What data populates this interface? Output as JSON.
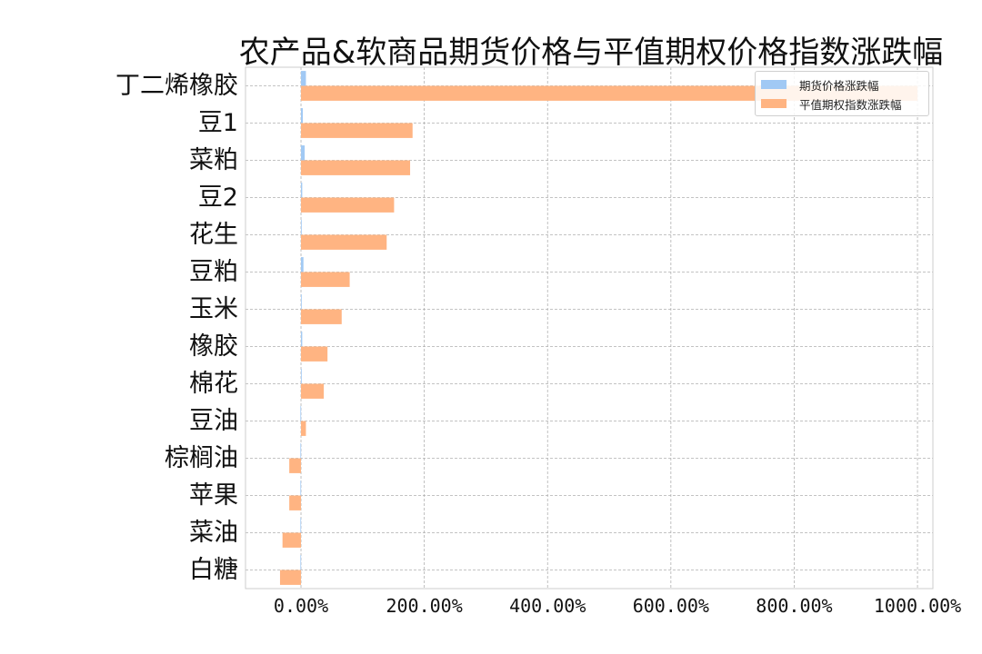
{
  "chart_data": {
    "type": "bar",
    "orientation": "horizontal",
    "title": "农产品&软商品期货价格与平值期权价格指数涨跌幅",
    "xlabel": "",
    "ylabel": "",
    "xlim": [
      -90,
      1025
    ],
    "x_ticks": [
      0,
      200,
      400,
      600,
      800,
      1000
    ],
    "x_tick_labels": [
      "0.00%",
      "200.00%",
      "400.00%",
      "600.00%",
      "800.00%",
      "1000.00%"
    ],
    "categories": [
      "丁二烯橡胶",
      "豆1",
      "菜粕",
      "豆2",
      "花生",
      "豆粕",
      "玉米",
      "橡胶",
      "棉花",
      "豆油",
      "棕榈油",
      "苹果",
      "菜油",
      "白糖"
    ],
    "series": [
      {
        "name": "期货价格涨跌幅",
        "color": "#a1c9f4",
        "values": [
          8,
          3,
          6,
          2,
          1,
          4,
          1,
          2,
          1,
          -1,
          -1,
          -1,
          -1,
          -1
        ]
      },
      {
        "name": "平值期权指数涨跌幅",
        "color": "#ffb482",
        "values": [
          1000,
          181,
          177,
          151,
          139,
          79,
          66,
          43,
          37,
          8,
          -19,
          -19,
          -30,
          -34
        ]
      }
    ],
    "grid": true,
    "legend_position": "top-right"
  }
}
